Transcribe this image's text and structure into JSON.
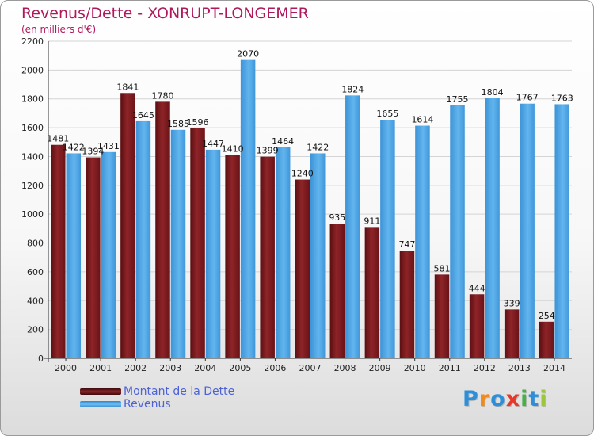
{
  "title": "Revenus/Dette - XONRUPT-LONGEMER",
  "subtitle": "(en milliers d'€)",
  "colors": {
    "debt": "#7a1a1e",
    "revenue": "#4aa3e3",
    "title": "#b0185c",
    "legend_text": "#4d62d6"
  },
  "chart_data": {
    "type": "bar",
    "categories": [
      "2000",
      "2001",
      "2002",
      "2003",
      "2004",
      "2005",
      "2006",
      "2007",
      "2008",
      "2009",
      "2010",
      "2011",
      "2012",
      "2013",
      "2014"
    ],
    "series": [
      {
        "name": "Montant de la Dette",
        "values": [
          1481,
          1394,
          1841,
          1780,
          1596,
          1410,
          1399,
          1240,
          935,
          911,
          747,
          581,
          444,
          339,
          254
        ]
      },
      {
        "name": "Revenus",
        "values": [
          1422,
          1431,
          1645,
          1585,
          1447,
          2070,
          1464,
          1422,
          1824,
          1655,
          1614,
          1755,
          1804,
          1767,
          1763
        ]
      }
    ],
    "yticks": [
      0,
      200,
      400,
      600,
      800,
      1000,
      1200,
      1400,
      1600,
      1800,
      2000,
      2200
    ],
    "ylim": [
      0,
      2200
    ],
    "grid": true,
    "legend": "bottom-left"
  },
  "logo": {
    "letters": [
      "P",
      "r",
      "o",
      "x",
      "i",
      "t",
      "i"
    ],
    "colors": [
      "#2e8fd8",
      "#f08a1c",
      "#2e8fd8",
      "#e53a2a",
      "#49b048",
      "#2e8fd8",
      "#9bc83a"
    ]
  }
}
